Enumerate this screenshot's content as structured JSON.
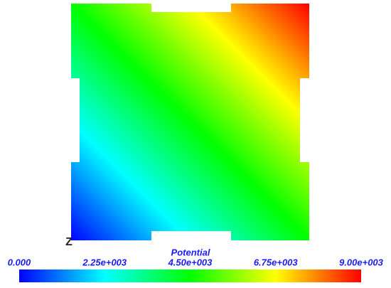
{
  "chart_data": {
    "type": "colormap",
    "title": "Potential",
    "axis_label": "Z",
    "clim": [
      0,
      9000
    ],
    "ticks": [
      {
        "value": 0,
        "label": "0.000"
      },
      {
        "value": 2250,
        "label": "2.25e+003"
      },
      {
        "value": 4500,
        "label": "4.50e+003"
      },
      {
        "value": 6750,
        "label": "6.75e+003"
      },
      {
        "value": 9000,
        "label": "9.00e+003"
      }
    ],
    "colors": [
      "#0000ff",
      "#00ffff",
      "#00ff00",
      "#ffff00",
      "#ff0000"
    ]
  }
}
